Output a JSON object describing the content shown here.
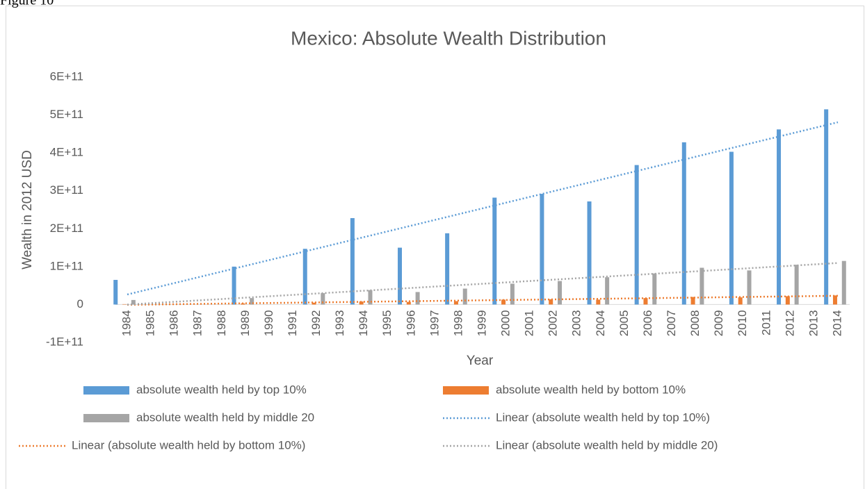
{
  "figure_label": "Figure 10",
  "chart_data": {
    "type": "bar",
    "title": "Mexico: Absolute Wealth Distribution",
    "x_label": "Year",
    "y_label": "Wealth in 2012 USD",
    "categories": [
      "1984",
      "1985",
      "1986",
      "1987",
      "1988",
      "1989",
      "1990",
      "1991",
      "1992",
      "1993",
      "1994",
      "1995",
      "1996",
      "1997",
      "1998",
      "1999",
      "2000",
      "2001",
      "2002",
      "2003",
      "2004",
      "2005",
      "2006",
      "2007",
      "2008",
      "2009",
      "2010",
      "2011",
      "2012",
      "2013",
      "2014"
    ],
    "series": [
      {
        "name": "absolute wealth held by top 10%",
        "color": "#5b9bd5",
        "values": [
          65000000000,
          null,
          null,
          null,
          null,
          100000000000,
          null,
          null,
          147000000000,
          null,
          228000000000,
          null,
          150000000000,
          null,
          188000000000,
          null,
          282000000000,
          null,
          292000000000,
          null,
          272000000000,
          null,
          368000000000,
          null,
          428000000000,
          null,
          403000000000,
          null,
          462000000000,
          null,
          515000000000
        ]
      },
      {
        "name": "absolute wealth held by bottom 10%",
        "color": "#ed7d31",
        "values": [
          1000000000,
          null,
          null,
          null,
          null,
          3000000000,
          null,
          null,
          5000000000,
          null,
          8000000000,
          null,
          7000000000,
          null,
          9000000000,
          null,
          13000000000,
          null,
          14000000000,
          null,
          13000000000,
          null,
          17000000000,
          null,
          20000000000,
          null,
          19000000000,
          null,
          22000000000,
          null,
          24000000000
        ]
      },
      {
        "name": "absolute wealth held by middle 20",
        "color": "#a5a5a5",
        "values": [
          12000000000,
          null,
          null,
          null,
          null,
          17000000000,
          null,
          null,
          30000000000,
          null,
          38000000000,
          null,
          33000000000,
          null,
          42000000000,
          null,
          55000000000,
          null,
          62000000000,
          null,
          72000000000,
          null,
          82000000000,
          null,
          97000000000,
          null,
          90000000000,
          null,
          105000000000,
          null,
          115000000000
        ]
      }
    ],
    "trendlines": [
      {
        "name": "Linear (absolute wealth held by top 10%)",
        "series": 0,
        "type": "linear",
        "color": "#5b9bd5"
      },
      {
        "name": "Linear (absolute wealth held by bottom 10%)",
        "series": 1,
        "type": "linear",
        "color": "#ed7d31"
      },
      {
        "name": "Linear (absolute wealth held by middle 20)",
        "series": 2,
        "type": "linear",
        "color": "#a5a5a5"
      }
    ],
    "ylim": [
      -100000000000,
      600000000000
    ],
    "yticks": [
      {
        "value": -100000000000,
        "label": "-1E+11"
      },
      0,
      {
        "value": 100000000000,
        "label": "1E+11"
      },
      {
        "value": 200000000000,
        "label": "2E+11"
      },
      {
        "value": 300000000000,
        "label": "3E+11"
      },
      {
        "value": 400000000000,
        "label": "4E+11"
      },
      {
        "value": 500000000000,
        "label": "5E+11"
      },
      {
        "value": 600000000000,
        "label": "6E+11"
      }
    ],
    "grid": false,
    "legend": "bottom"
  }
}
